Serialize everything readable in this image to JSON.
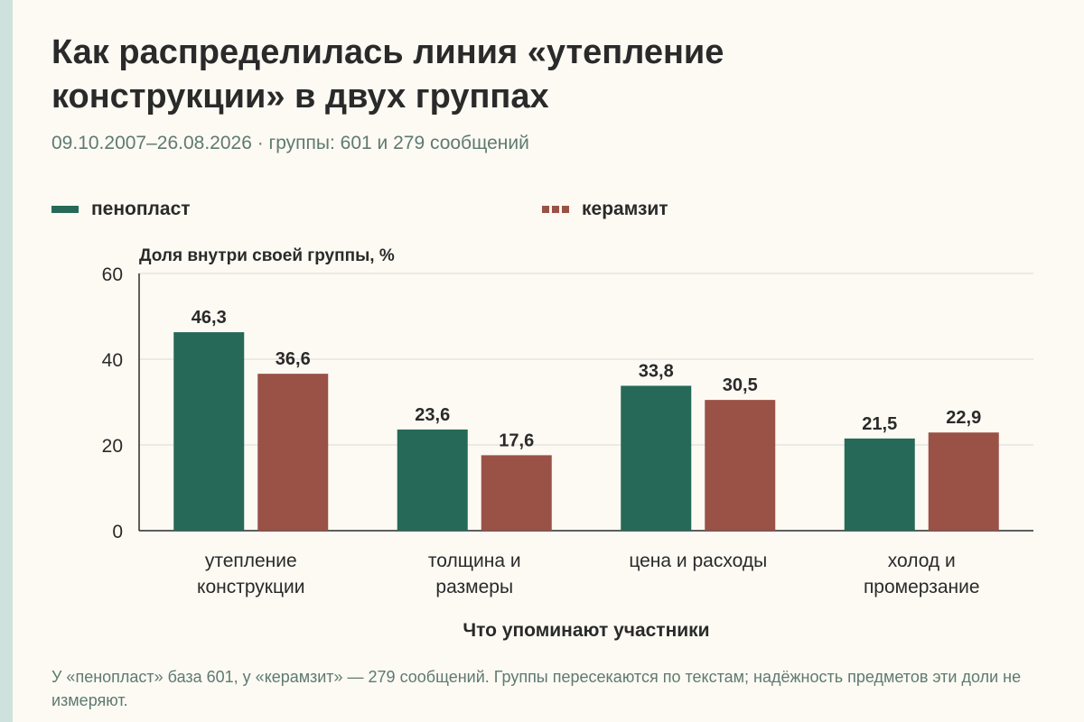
{
  "title": "Как распределилась линия «утепление конструкции» в двух группах",
  "subtitle": "09.10.2007–26.08.2026 · группы: 601 и 279 сообщений",
  "note": "У «пенопласт» база 601, у «керамзит» — 279 сообщений. Группы пересекаются по текстам; надёжность предметов эти доли не измеряют.",
  "colors": {
    "penoplast": "#276958",
    "keramzit": "#9a5146",
    "grid": "#d9d9d9",
    "axis": "#2a2a2a"
  },
  "chart_data": {
    "type": "bar",
    "title": "Как распределилась линия «утепление конструкции» в двух группах",
    "ylabel": "Доля внутри своей группы, %",
    "xlabel": "Что упоминают участники",
    "ylim": [
      0,
      60
    ],
    "yticks": [
      0,
      20,
      40,
      60
    ],
    "grid": true,
    "legend_position": "top",
    "categories": [
      [
        "утепление",
        "конструкции"
      ],
      [
        "толщина и",
        "размеры"
      ],
      [
        "цена и расходы"
      ],
      [
        "холод и",
        "промерзание"
      ]
    ],
    "series": [
      {
        "name": "пенопласт",
        "values": [
          46.3,
          23.6,
          33.8,
          21.5
        ],
        "labels": [
          "46,3",
          "23,6",
          "33,8",
          "21,5"
        ]
      },
      {
        "name": "керамзит",
        "values": [
          36.6,
          17.6,
          30.5,
          22.9
        ],
        "labels": [
          "36,6",
          "17,6",
          "30,5",
          "22,9"
        ]
      }
    ]
  }
}
